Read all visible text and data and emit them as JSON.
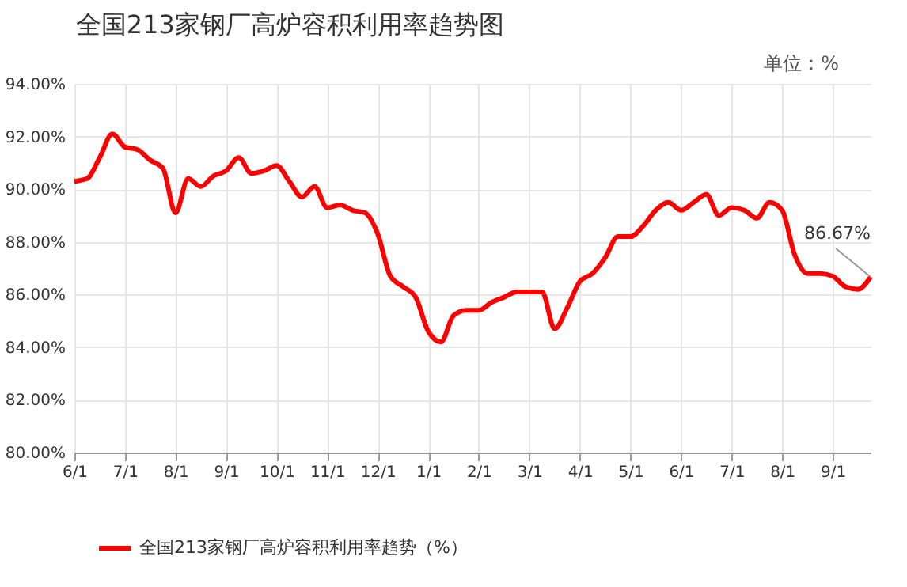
{
  "chart_data": {
    "type": "line",
    "title": "全国213家钢厂高炉容积利用率趋势图",
    "categories": [
      "6/1",
      null,
      null,
      null,
      "7/1",
      null,
      null,
      null,
      "8/1",
      null,
      null,
      null,
      "9/1",
      null,
      null,
      null,
      "10/1",
      null,
      null,
      null,
      "11/1",
      null,
      null,
      null,
      "12/1",
      null,
      null,
      null,
      "1/1",
      null,
      null,
      null,
      "2/1",
      null,
      null,
      null,
      "3/1",
      null,
      null,
      null,
      "4/1",
      null,
      null,
      null,
      "5/1",
      null,
      null,
      null,
      "6/1",
      null,
      null,
      null,
      "7/1",
      null,
      null,
      null,
      "8/1",
      null,
      null,
      null,
      "9/1",
      null,
      null,
      null
    ],
    "series": [
      {
        "name": "全国213家钢厂高炉容积利用率趋势（%）",
        "color": "#ff0000",
        "values": [
          90.3,
          90.4,
          91.2,
          92.1,
          91.6,
          91.5,
          91.1,
          90.8,
          89.1,
          90.4,
          90.1,
          90.5,
          90.7,
          91.2,
          90.6,
          90.7,
          90.9,
          90.3,
          89.7,
          90.1,
          89.3,
          89.4,
          89.2,
          89.1,
          88.3,
          86.7,
          86.3,
          85.9,
          84.6,
          84.2,
          85.2,
          85.4,
          85.4,
          85.7,
          85.9,
          86.1,
          86.1,
          86.1,
          84.7,
          85.5,
          86.5,
          86.8,
          87.4,
          88.2,
          88.2,
          88.6,
          89.2,
          89.5,
          89.2,
          89.5,
          89.8,
          89.0,
          89.3,
          89.2,
          88.9,
          89.5,
          89.2,
          87.5,
          86.8,
          86.8,
          86.7,
          86.3,
          86.2,
          86.67
        ]
      }
    ],
    "ylim": [
      80,
      94
    ],
    "yticks": [
      {
        "value": 80,
        "label": "80.00%"
      },
      {
        "value": 82,
        "label": "82.00%"
      },
      {
        "value": 84,
        "label": "84.00%"
      },
      {
        "value": 86,
        "label": "86.00%"
      },
      {
        "value": 88,
        "label": "88.00%"
      },
      {
        "value": 90,
        "label": "90.00%"
      },
      {
        "value": 92,
        "label": "92.00%"
      },
      {
        "value": 94,
        "label": "94.00%"
      }
    ],
    "grid": true,
    "legend": "bottom",
    "marker": "none",
    "line_style": "solid",
    "annotations": [
      "单位：%",
      {
        "text": "86.67%",
        "y": 86.67
      }
    ]
  }
}
